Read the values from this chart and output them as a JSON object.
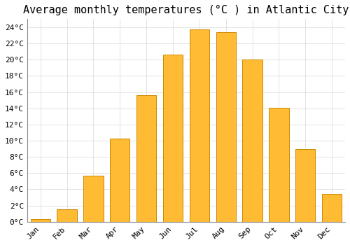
{
  "title": "Average monthly temperatures (°C ) in Atlantic City",
  "months": [
    "Jan",
    "Feb",
    "Mar",
    "Apr",
    "May",
    "Jun",
    "Jul",
    "Aug",
    "Sep",
    "Oct",
    "Nov",
    "Dec"
  ],
  "values": [
    0.3,
    1.5,
    5.7,
    10.3,
    15.6,
    20.6,
    23.7,
    23.4,
    20.0,
    14.1,
    9.0,
    3.4
  ],
  "bar_color": "#FFBB33",
  "bar_edge_color": "#CC8800",
  "background_color": "#FFFFFF",
  "grid_color": "#DDDDDD",
  "ylim": [
    0,
    25
  ],
  "ytick_values": [
    0,
    2,
    4,
    6,
    8,
    10,
    12,
    14,
    16,
    18,
    20,
    22,
    24
  ],
  "title_fontsize": 11,
  "tick_fontsize": 8,
  "font_family": "monospace"
}
